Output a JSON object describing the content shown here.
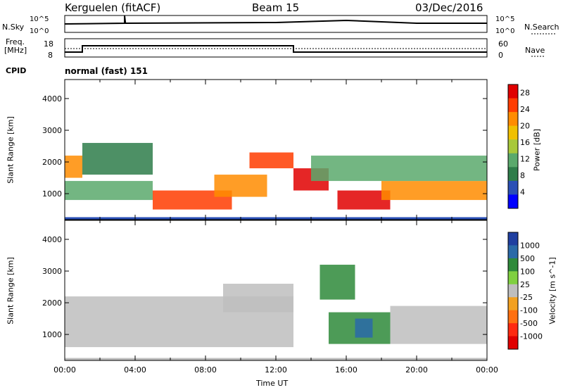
{
  "header": {
    "station": "Kerguelen (fitACF)",
    "beam": "Beam 15",
    "date": "03/Dec/2016"
  },
  "noise_panel": {
    "left_label": "N.Sky",
    "right_label": "N.Search",
    "left_ticks": [
      "10^5",
      "10^0"
    ],
    "right_ticks": [
      "10^5",
      "10^0"
    ]
  },
  "freq_panel": {
    "left_label_line1": "Freq.",
    "left_label_line2": "[MHz]",
    "left_ticks": [
      "18",
      "8"
    ],
    "right_label": "Nave",
    "right_ticks": [
      "60",
      "0"
    ]
  },
  "cpid": {
    "label": "CPID",
    "value": "normal (fast) 151"
  },
  "colors": {
    "power_scale": [
      "#0000ff",
      "#2a4fb5",
      "#2e7d4a",
      "#5aa96c",
      "#a8c83a",
      "#f0c000",
      "#ff8c00",
      "#ff3c00",
      "#e00000"
    ],
    "velocity_scale": [
      "#1f3fa0",
      "#2a6aa8",
      "#2e8a3a",
      "#7fd040",
      "#bebebe",
      "#f2a020",
      "#ff7010",
      "#ff2a10",
      "#e00000"
    ],
    "ground_scatter": "#bebebe"
  },
  "chart_data": [
    {
      "type": "heatmap",
      "title": "",
      "xlabel": "",
      "ylabel": "Slant Range [km]",
      "x_range": [
        "00:00",
        "24:00"
      ],
      "ylim": [
        180,
        4600
      ],
      "y_ticks": [
        "1000",
        "2000",
        "3000",
        "4000"
      ],
      "colorbar": {
        "label": "Power [dB]",
        "ticks": [
          "4",
          "8",
          "12",
          "16",
          "20",
          "24",
          "28"
        ],
        "range": [
          0,
          30
        ]
      },
      "regions": [
        {
          "t_start": 0.0,
          "t_end": 1.0,
          "r_lo": 1500,
          "r_hi": 2200,
          "value": 20
        },
        {
          "t_start": 1.0,
          "t_end": 5.0,
          "r_lo": 1600,
          "r_hi": 2600,
          "value": 8
        },
        {
          "t_start": 0.0,
          "t_end": 5.0,
          "r_lo": 800,
          "r_hi": 1400,
          "value": 12
        },
        {
          "t_start": 5.0,
          "t_end": 9.5,
          "r_lo": 500,
          "r_hi": 1100,
          "value": 26
        },
        {
          "t_start": 8.5,
          "t_end": 11.5,
          "r_lo": 900,
          "r_hi": 1600,
          "value": 20
        },
        {
          "t_start": 10.5,
          "t_end": 13.0,
          "r_lo": 1800,
          "r_hi": 2300,
          "value": 24
        },
        {
          "t_start": 13.0,
          "t_end": 15.0,
          "r_lo": 1100,
          "r_hi": 1800,
          "value": 27
        },
        {
          "t_start": 15.5,
          "t_end": 18.5,
          "r_lo": 500,
          "r_hi": 1100,
          "value": 28
        },
        {
          "t_start": 18.0,
          "t_end": 24.0,
          "r_lo": 800,
          "r_hi": 1400,
          "value": 22
        },
        {
          "t_start": 14.0,
          "t_end": 24.0,
          "r_lo": 1400,
          "r_hi": 2200,
          "value": 12
        }
      ]
    },
    {
      "type": "heatmap",
      "title": "",
      "xlabel": "Time UT",
      "ylabel": "Slant Range [km]",
      "x_ticks": [
        "00:00",
        "04:00",
        "08:00",
        "12:00",
        "16:00",
        "20:00",
        "00:00"
      ],
      "x_range": [
        "00:00",
        "24:00"
      ],
      "ylim": [
        180,
        4600
      ],
      "y_ticks": [
        "1000",
        "2000",
        "3000",
        "4000"
      ],
      "colorbar": {
        "label": "Velocity [m s^-1]",
        "ticks": [
          "1000",
          "500",
          "100",
          "25",
          "-25",
          "-100",
          "-500",
          "-1000"
        ]
      },
      "regions": [
        {
          "t_start": 0.0,
          "t_end": 13.0,
          "r_lo": 600,
          "r_hi": 2200,
          "value": 0,
          "kind": "ground scatter"
        },
        {
          "t_start": 9.0,
          "t_end": 13.0,
          "r_lo": 1700,
          "r_hi": 2600,
          "value": 0,
          "kind": "ground scatter"
        },
        {
          "t_start": 15.0,
          "t_end": 18.5,
          "r_lo": 700,
          "r_hi": 1700,
          "value": 150
        },
        {
          "t_start": 18.5,
          "t_end": 24.0,
          "r_lo": 700,
          "r_hi": 1900,
          "value": 0,
          "kind": "ground scatter"
        },
        {
          "t_start": 14.5,
          "t_end": 16.5,
          "r_lo": 2100,
          "r_hi": 3200,
          "value": 120
        },
        {
          "t_start": 16.5,
          "t_end": 17.5,
          "r_lo": 900,
          "r_hi": 1500,
          "value": 600
        }
      ]
    }
  ]
}
